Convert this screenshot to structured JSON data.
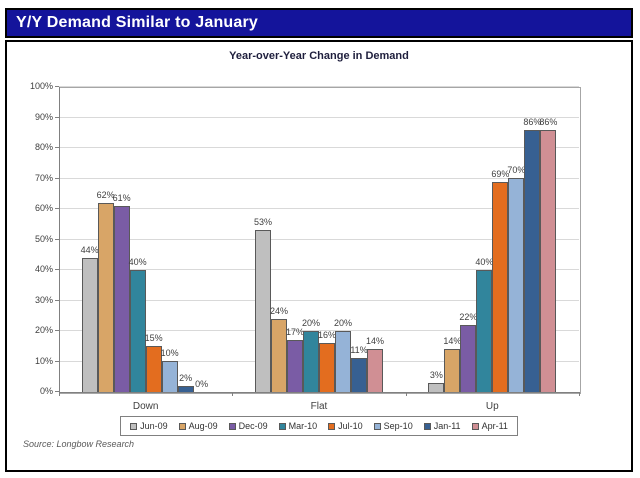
{
  "header": {
    "title": "Y/Y Demand Similar to January"
  },
  "colors": {
    "header_bg": "#14149B",
    "header_text": "#FFFFFF",
    "grid": "#D9D9D9",
    "axis": "#808080",
    "plot_border": "#A6A6A6",
    "bar_border": "#595959",
    "label_text": "#404040"
  },
  "chart_data": {
    "type": "bar",
    "title": "Year-over-Year Change in Demand",
    "categories": [
      "Down",
      "Flat",
      "Up"
    ],
    "series": [
      {
        "name": "Jun-09",
        "color": "#BFBFBF",
        "values": [
          44,
          53,
          3
        ]
      },
      {
        "name": "Aug-09",
        "color": "#D8A567",
        "values": [
          62,
          24,
          14
        ]
      },
      {
        "name": "Dec-09",
        "color": "#7A5CA5",
        "values": [
          61,
          17,
          22
        ]
      },
      {
        "name": "Mar-10",
        "color": "#31859C",
        "values": [
          40,
          20,
          40
        ]
      },
      {
        "name": "Jul-10",
        "color": "#E36D1F",
        "values": [
          15,
          16,
          69
        ]
      },
      {
        "name": "Sep-10",
        "color": "#95B3D7",
        "values": [
          10,
          20,
          70
        ]
      },
      {
        "name": "Jan-11",
        "color": "#376092",
        "values": [
          2,
          11,
          86
        ]
      },
      {
        "name": "Apr-11",
        "color": "#D08F94",
        "values": [
          0,
          14,
          86
        ]
      }
    ],
    "ylim": [
      0,
      100
    ],
    "ytick_step": 10,
    "ytick_suffix": "%",
    "value_label_suffix": "%",
    "grid": true,
    "legend_position": "bottom"
  },
  "footer": {
    "source": "Source: Longbow Research"
  }
}
